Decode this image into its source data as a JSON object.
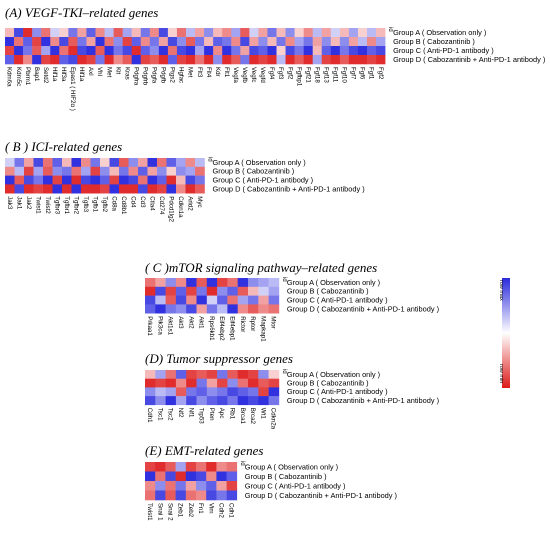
{
  "chart_data": [
    {
      "type": "heatmap",
      "title": "(A) VEGF-TKI–related genes",
      "id_label": "id",
      "rows": [
        "Group A ( Observation only )",
        "Group B ( Cabozantinib )",
        "Group C ( Anti-PD-1 antibody )",
        "Group D ( Cabozantinib + Anti-PD-1 antibody )"
      ],
      "columns": [
        "Kdm6a",
        "Kdm5c",
        "Pbrm1",
        "Bap1",
        "Setd2",
        "Hif1a",
        "Hif3a",
        "Epas1 ( HIF2α )",
        "Hif1a",
        "Axl",
        "Vhl",
        "Met",
        "Kit",
        "Kras",
        "Pdgfra",
        "Pdgfrb",
        "Pdgfa",
        "Pdgfb",
        "Ptgs2",
        "Hgfac",
        "Met",
        "Flt3",
        "Flt4",
        "Kdr",
        "Flt1",
        "Vegfa",
        "Vegfb",
        "Vegfc",
        "Vegfd",
        "Fgf4",
        "Fgf3",
        "Fgf2",
        "Fgfbp1",
        "Fgf21",
        "Fgf18",
        "Fgf13",
        "Fgf11",
        "Fgf10",
        "Fgf7",
        "Fgf6",
        "Fgf1",
        "Fgf2"
      ],
      "values": [
        [
          -0.3,
          0.8,
          -0.9,
          0.5,
          -0.6,
          0.2,
          -0.2,
          0.6,
          -0.4,
          0.7,
          -0.5,
          0.3,
          -0.7,
          0.4,
          -0.3,
          0.6,
          -0.5,
          0.8,
          -0.2,
          -0.6,
          0.3,
          -0.4,
          0.5,
          -0.3,
          -0.5,
          0.4,
          -0.7,
          0.2,
          -0.4,
          0.6,
          -0.3,
          0.5,
          -0.2,
          -0.5,
          0.3,
          -0.4,
          0.2,
          -0.3,
          0.4,
          -0.2,
          0.3,
          -0.3
        ],
        [
          0.9,
          -0.6,
          0.7,
          -0.8,
          0.9,
          -0.5,
          0.8,
          -0.7,
          0.6,
          -0.4,
          0.9,
          -0.6,
          0.5,
          -0.8,
          0.7,
          -0.5,
          0.6,
          -0.4,
          0.8,
          0.5,
          -0.7,
          0.6,
          -0.3,
          0.7,
          0.6,
          -0.5,
          0.8,
          -0.4,
          0.5,
          -0.3,
          0.6,
          -0.5,
          0.4,
          0.6,
          -0.4,
          0.5,
          -0.3,
          0.5,
          -0.4,
          0.3,
          -0.5,
          0.4
        ],
        [
          -0.8,
          0.9,
          0.6,
          -0.7,
          0.4,
          0.9,
          -0.6,
          -0.9,
          0.8,
          0.9,
          -0.7,
          0.9,
          0.6,
          0.8,
          -0.9,
          0.7,
          0.5,
          0.9,
          -0.6,
          0.8,
          0.9,
          0.4,
          0.9,
          -0.5,
          0.9,
          0.6,
          -0.4,
          0.8,
          0.7,
          0.9,
          -0.2,
          0.8,
          0.6,
          0.9,
          -0.3,
          0.7,
          0.9,
          0.6,
          0.8,
          0.9,
          0.7,
          0.8
        ],
        [
          0.7,
          -0.9,
          -0.5,
          0.9,
          -0.8,
          -0.9,
          0.7,
          0.8,
          -0.9,
          -0.8,
          0.6,
          -0.9,
          -0.5,
          -0.7,
          0.9,
          -0.8,
          -0.7,
          -0.9,
          0.7,
          -0.8,
          -0.9,
          -0.6,
          -0.9,
          0.5,
          -0.9,
          -0.7,
          0.6,
          -0.9,
          -0.8,
          -0.9,
          0.3,
          -0.9,
          -0.7,
          -0.9,
          0.4,
          -0.8,
          -0.9,
          -0.7,
          -0.9,
          -0.9,
          -0.8,
          -0.9
        ]
      ]
    },
    {
      "type": "heatmap",
      "title": "( B ) ICI-related genes",
      "id_label": "id",
      "rows": [
        "Group A ( Observation only )",
        "Group B ( Cabozantinib )",
        "Group C ( Anti-PD-1 antibody )",
        "Group D ( Cabozantinib + Anti-PD-1 antibody )"
      ],
      "columns": [
        "Jak3",
        "Jak1",
        "Jak2",
        "Twist1",
        "Twist2",
        "Tgfbr3",
        "Tgfbr1",
        "Tgfbr2",
        "Tgfb3",
        "Tgfb1",
        "Tgfb2",
        "Cd8a",
        "Cd8b1",
        "Cd4",
        "Cd3",
        "Ctla4",
        "Cd274",
        "Pdcd1lg2",
        "Cdkn1a",
        "Arid2",
        "Myc"
      ],
      "values": [
        [
          0.2,
          0.6,
          -0.4,
          0.8,
          -0.6,
          0.7,
          -0.3,
          0.9,
          -0.5,
          0.6,
          -0.2,
          0.8,
          -0.7,
          0.5,
          -0.4,
          0.9,
          -0.6,
          0.7,
          0.4,
          -0.5,
          0.3
        ],
        [
          -0.5,
          0.3,
          -0.8,
          0.4,
          -0.7,
          0.5,
          0.6,
          -0.6,
          0.4,
          -0.8,
          0.5,
          -0.3,
          0.6,
          -0.5,
          0.7,
          -0.4,
          0.5,
          -0.2,
          0.5,
          0.4,
          -0.6
        ],
        [
          0.9,
          -0.7,
          0.8,
          0.6,
          0.9,
          -0.8,
          0.9,
          -0.9,
          0.8,
          0.9,
          0.7,
          -0.8,
          0.9,
          0.8,
          -0.6,
          0.9,
          0.7,
          -0.9,
          -0.3,
          0.8,
          0.6
        ],
        [
          -0.9,
          0.8,
          -0.9,
          -0.8,
          -0.9,
          0.9,
          -0.9,
          0.9,
          -0.9,
          -0.9,
          -0.8,
          0.9,
          -0.9,
          -0.9,
          0.8,
          -0.9,
          -0.8,
          0.9,
          -0.5,
          -0.9,
          -0.7
        ]
      ]
    },
    {
      "type": "heatmap",
      "title": "( C )mTOR signaling pathway–related genes",
      "id_label": "id",
      "rows": [
        "Group A ( Observation only )",
        "Group B ( Cabozantinib )",
        "Group C ( Anti-PD-1 antibody )",
        "Group D ( Cabozantinib + Anti-PD-1 antibody )"
      ],
      "columns": [
        "Prkaa1",
        "Pik3ca",
        "Akt1s1",
        "Akt3",
        "Akt2",
        "Akt1",
        "Rps6kb1",
        "Eif4ebp2",
        "Eif4ebp1",
        "Rictor",
        "Rptor",
        "Mapkap1",
        "Mtor"
      ],
      "values": [
        [
          -0.6,
          -0.4,
          0.5,
          -0.5,
          0.9,
          -0.7,
          0.9,
          -0.8,
          -0.6,
          0.9,
          0.5,
          0.4,
          0.3
        ],
        [
          -0.9,
          0.8,
          -0.8,
          0.7,
          -0.8,
          0.6,
          -0.9,
          0.5,
          0.7,
          -0.7,
          -0.3,
          0.2,
          0.4
        ],
        [
          0.8,
          0.3,
          -0.7,
          0.8,
          -0.5,
          0.9,
          0.2,
          0.7,
          -0.6,
          0.4,
          0.6,
          -0.4,
          0.6
        ],
        [
          0.7,
          0.9,
          0.6,
          0.5,
          0.8,
          -0.4,
          0.6,
          0.3,
          0.9,
          -0.5,
          -0.7,
          -0.5,
          -0.6
        ]
      ],
      "legend": {
        "max_label": "row max",
        "min_label": "row min",
        "max_color": "#2a2adc",
        "min_color": "#dc1a1a"
      }
    },
    {
      "type": "heatmap",
      "title": "(D) Tumor suppressor genes",
      "id_label": "id",
      "rows": [
        "Group A ( Observation only )",
        "Group B ( Cabozantinib )",
        "Group C ( Anti-PD-1 antibody )",
        "Group D ( Cabozantinib + Anti-PD-1 antibody )"
      ],
      "columns": [
        "Cdh1",
        "Tsc1",
        "Tsc2",
        "Nf2",
        "Nf1",
        "Trp53",
        "Pten",
        "Apc",
        "Rb1",
        "Brca1",
        "Brca2",
        "Wt1",
        "Cdkn2a"
      ],
      "values": [
        [
          -0.3,
          0.4,
          -0.6,
          0.7,
          -0.8,
          -0.7,
          -0.8,
          0.6,
          -0.7,
          -0.9,
          -0.8,
          0.5,
          -0.2
        ],
        [
          -0.9,
          -0.8,
          -0.9,
          -0.5,
          -0.9,
          0.6,
          -0.4,
          -0.8,
          0.5,
          -0.6,
          -0.9,
          -0.7,
          -0.8
        ],
        [
          0.5,
          0.3,
          0.4,
          -0.7,
          0.6,
          0.7,
          0.5,
          0.6,
          0.8,
          0.7,
          0.6,
          -0.8,
          0.9
        ],
        [
          0.8,
          0.5,
          0.9,
          0.4,
          0.8,
          0.5,
          0.7,
          0.8,
          0.6,
          0.9,
          0.8,
          0.9,
          0.6
        ]
      ]
    },
    {
      "type": "heatmap",
      "title": "(E) EMT-related genes",
      "id_label": "id",
      "rows": [
        "Group A ( Observation only )",
        "Group B ( Cabozantinib )",
        "Group C ( Anti-PD-1 antibody )",
        "Group D ( Cabozantinib + Anti-PD-1 antibody )"
      ],
      "columns": [
        "Twist1",
        "Snai 1",
        "Snai 2",
        "Zeb1",
        "Zeb2",
        "Fn1",
        "Vim",
        "Cdh2",
        "Cdh1"
      ],
      "values": [
        [
          -0.8,
          -0.9,
          -0.7,
          0.4,
          -0.8,
          -0.6,
          -0.9,
          -0.5,
          -0.6
        ],
        [
          0.9,
          -0.6,
          0.8,
          -0.9,
          0.9,
          0.8,
          -0.5,
          0.9,
          0.7
        ],
        [
          -0.5,
          0.5,
          -0.6,
          0.6,
          -0.4,
          0.5,
          0.7,
          -0.4,
          -0.8
        ],
        [
          -0.6,
          0.8,
          -0.7,
          0.8,
          -0.6,
          -0.5,
          0.8,
          0.6,
          0.8
        ]
      ]
    }
  ]
}
